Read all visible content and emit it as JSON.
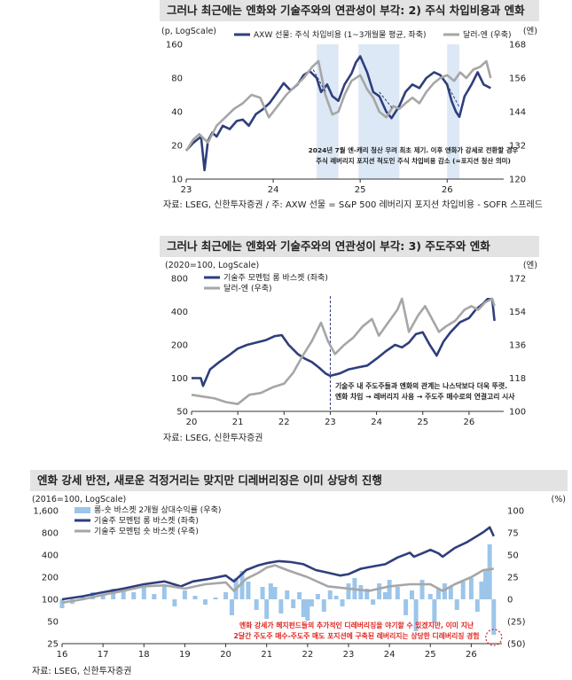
{
  "charts": [
    {
      "title": "그러나 최근에는 엔화와 기술주와의 연관성이 부각: 2) 주식 차입비용과 엔화",
      "source": "자료: LSEG, 신한투자증권 / 주: AXW 선물 = S&P 500 레버리지 포지션 차입비용 - SOFR 스프레드",
      "left_unit": "(p, LogScale)",
      "right_unit": "(엔)",
      "legend": [
        "AXW 선물: 주식 차입비용 (1~3개월물 평균, 좌축)",
        "달러-엔 (우축)"
      ],
      "annotation": [
        "2024년 7월 엔-캐리 청산 우려 최초 제기. 이후 엔화가 강세로 전환할 경우",
        "주식 레버리지 포지션 척도인 주식 차입비용 감소 (=포지션 청산 의미)"
      ]
    },
    {
      "title": "그러나 최근에는 엔화와 기술주와의 연관성이 부각: 3) 주도주와 엔화",
      "source": "자료: LSEG, 신한투자증권",
      "left_unit": "(2020=100, LogScale)",
      "right_unit": "(엔)",
      "legend": [
        "기술주 모멘텀 롱 바스켓 (좌축)",
        "달러-엔 (우축)"
      ],
      "annotation": [
        "기술주 내 주도주들과 엔화의 관계는 나스닥보다 더욱 뚜렷.",
        "엔화 차입 → 레버리지 사용 → 주도주 매수로의 연결고리 시사"
      ]
    },
    {
      "title": "엔화 강세 반전, 새로운 걱정거리는 맞지만 디레버리징은 이미 상당히 진행",
      "source": "자료: LSEG, 신한투자증권",
      "left_unit": "(2016=100, LogScale)",
      "right_unit": "(%)",
      "legend": [
        "롱-숏 바스켓 2개월 상대수익률 (우축)",
        "기술주 모멘텀 롱 바스켓 (좌축)",
        "기술주 모멘텀 숏 바스켓 (우축)"
      ],
      "annotation": [
        "엔화 강세가 헤지펀드들의 추가적인 디레버리징을 야기할 수 있겠지만, 이미 지난",
        "2달간 주도주 매수-주도주 매도 포지션에 구축된 레버리지는 상당한 디레버리징 경험"
      ]
    }
  ],
  "chart_data": [
    {
      "type": "line",
      "y_scale": "log",
      "x_ticks": [
        "23",
        "24",
        "25",
        "26"
      ],
      "x_range": [
        2023.0,
        2026.65
      ],
      "y_left_ticks": [
        10,
        20,
        40,
        80,
        160
      ],
      "y_left_range": [
        10,
        160
      ],
      "y_right_ticks": [
        120,
        132,
        144,
        156,
        168
      ],
      "y_right_range": [
        120,
        168
      ],
      "shaded_periods": [
        [
          2024.5,
          2024.75
        ],
        [
          2024.98,
          2025.45
        ],
        [
          2026.0,
          2026.14
        ]
      ],
      "series": [
        {
          "name": "AXW 선물: 주식 차입비용 (1~3개월물 평균, 좌축)",
          "axis": "left",
          "color": "#2f3e7c",
          "x": [
            2023.0,
            2023.08,
            2023.17,
            2023.21,
            2023.25,
            2023.3,
            2023.35,
            2023.42,
            2023.5,
            2023.58,
            2023.65,
            2023.72,
            2023.8,
            2023.88,
            2023.96,
            2024.05,
            2024.12,
            2024.2,
            2024.28,
            2024.35,
            2024.42,
            2024.5,
            2024.55,
            2024.62,
            2024.68,
            2024.75,
            2024.82,
            2024.9,
            2024.95,
            2025.0,
            2025.08,
            2025.15,
            2025.22,
            2025.3,
            2025.36,
            2025.45,
            2025.52,
            2025.6,
            2025.68,
            2025.76,
            2025.85,
            2025.92,
            2026.0,
            2026.05,
            2026.1,
            2026.14,
            2026.2,
            2026.28,
            2026.35,
            2026.42,
            2026.5
          ],
          "y": [
            18,
            21,
            24,
            12,
            22,
            26,
            24,
            30,
            28,
            33,
            34,
            30,
            38,
            42,
            48,
            60,
            72,
            62,
            70,
            85,
            92,
            80,
            60,
            70,
            55,
            50,
            70,
            88,
            110,
            125,
            90,
            60,
            55,
            40,
            35,
            45,
            60,
            70,
            65,
            80,
            90,
            85,
            70,
            50,
            40,
            36,
            55,
            70,
            90,
            70,
            65
          ]
        },
        {
          "name": "달러-엔 (우축)",
          "axis": "right",
          "color": "#a6a6a6",
          "x": [
            2023.0,
            2023.08,
            2023.15,
            2023.25,
            2023.35,
            2023.45,
            2023.55,
            2023.65,
            2023.75,
            2023.85,
            2023.95,
            2024.05,
            2024.15,
            2024.25,
            2024.35,
            2024.45,
            2024.52,
            2024.6,
            2024.68,
            2024.75,
            2024.82,
            2024.9,
            2025.0,
            2025.08,
            2025.15,
            2025.22,
            2025.3,
            2025.38,
            2025.45,
            2025.52,
            2025.6,
            2025.68,
            2025.76,
            2025.84,
            2025.92,
            2026.0,
            2026.08,
            2026.15,
            2026.22,
            2026.3,
            2026.38,
            2026.45,
            2026.5
          ],
          "y": [
            130,
            134,
            136,
            133,
            139,
            142,
            145,
            147,
            150,
            149,
            142,
            146,
            150,
            153,
            156,
            160,
            162,
            150,
            143,
            144,
            150,
            155,
            157,
            152,
            149,
            144,
            142,
            146,
            145,
            147,
            149,
            147,
            151,
            154,
            156,
            157,
            155,
            158,
            156,
            159,
            160,
            162,
            156
          ]
        }
      ]
    },
    {
      "type": "line",
      "y_scale": "log",
      "x_ticks": [
        "20",
        "21",
        "22",
        "23",
        "24",
        "25",
        "26"
      ],
      "x_range": [
        2020.0,
        2026.75
      ],
      "y_left_ticks": [
        50,
        100,
        200,
        400,
        800
      ],
      "y_left_range": [
        50,
        800
      ],
      "y_right_ticks": [
        100,
        118,
        136,
        154,
        172
      ],
      "y_right_range": [
        100,
        172
      ],
      "marker_x": 2023.0,
      "series": [
        {
          "name": "기술주 모멘텀 롱 바스켓 (좌축)",
          "axis": "left",
          "color": "#2f3e7c",
          "x": [
            2020.0,
            2020.2,
            2020.25,
            2020.4,
            2020.6,
            2020.8,
            2021.0,
            2021.2,
            2021.4,
            2021.6,
            2021.8,
            2021.95,
            2022.1,
            2022.3,
            2022.45,
            2022.6,
            2022.75,
            2022.9,
            2023.0,
            2023.2,
            2023.4,
            2023.6,
            2023.8,
            2024.0,
            2024.2,
            2024.4,
            2024.55,
            2024.7,
            2024.85,
            2025.0,
            2025.15,
            2025.3,
            2025.45,
            2025.6,
            2025.8,
            2026.0,
            2026.15,
            2026.3,
            2026.4,
            2026.5,
            2026.55
          ],
          "y": [
            100,
            100,
            85,
            120,
            140,
            160,
            185,
            200,
            210,
            220,
            240,
            245,
            200,
            165,
            150,
            140,
            125,
            110,
            105,
            110,
            120,
            125,
            130,
            150,
            175,
            200,
            190,
            210,
            250,
            260,
            200,
            160,
            215,
            260,
            320,
            350,
            420,
            470,
            520,
            520,
            330
          ]
        },
        {
          "name": "달러-엔 (우축)",
          "axis": "right",
          "color": "#a6a6a6",
          "x": [
            2020.0,
            2020.25,
            2020.5,
            2020.75,
            2021.0,
            2021.25,
            2021.5,
            2021.75,
            2022.0,
            2022.2,
            2022.4,
            2022.6,
            2022.8,
            2022.95,
            2023.1,
            2023.3,
            2023.5,
            2023.7,
            2023.9,
            2024.05,
            2024.25,
            2024.45,
            2024.55,
            2024.7,
            2024.9,
            2025.05,
            2025.2,
            2025.35,
            2025.5,
            2025.7,
            2025.9,
            2026.05,
            2026.2,
            2026.35,
            2026.5,
            2026.55
          ],
          "y": [
            109,
            108,
            107,
            105,
            104,
            109,
            110,
            113,
            115,
            121,
            130,
            138,
            148,
            138,
            131,
            136,
            140,
            146,
            150,
            141,
            148,
            155,
            161,
            143,
            152,
            157,
            150,
            143,
            146,
            149,
            155,
            157,
            155,
            159,
            161,
            157
          ]
        }
      ]
    },
    {
      "type": "line",
      "y_scale": "log",
      "x_ticks": [
        "16",
        "17",
        "18",
        "19",
        "20",
        "21",
        "22",
        "23",
        "24",
        "25",
        "26"
      ],
      "x_range": [
        2016.0,
        2026.75
      ],
      "y_left_ticks": [
        25,
        50,
        100,
        200,
        400,
        800,
        1600
      ],
      "y_left_range": [
        25,
        1600
      ],
      "y_right_ticks": [
        -50,
        -25,
        0,
        25,
        50,
        75,
        100
      ],
      "y_right_tick_labels": [
        "(50)",
        "(25)",
        "0",
        "25",
        "50",
        "75",
        "100"
      ],
      "y_right_range": [
        -50,
        100
      ],
      "highlight_x": 2026.55,
      "bars": {
        "name": "롱-숏 바스켓 2개월 상대수익률 (우축)",
        "axis": "right",
        "color": "#9cc5ea",
        "x": [
          2016.0,
          2016.25,
          2016.5,
          2016.75,
          2017.0,
          2017.25,
          2017.5,
          2017.75,
          2018.0,
          2018.25,
          2018.5,
          2018.75,
          2019.0,
          2019.25,
          2019.5,
          2019.75,
          2020.0,
          2020.15,
          2020.25,
          2020.4,
          2020.55,
          2020.75,
          2020.9,
          2021.0,
          2021.1,
          2021.2,
          2021.35,
          2021.5,
          2021.65,
          2021.8,
          2021.9,
          2022.0,
          2022.1,
          2022.25,
          2022.4,
          2022.55,
          2022.7,
          2022.85,
          2023.0,
          2023.15,
          2023.3,
          2023.45,
          2023.6,
          2023.75,
          2023.9,
          2024.0,
          2024.2,
          2024.4,
          2024.55,
          2024.65,
          2024.8,
          2025.0,
          2025.1,
          2025.2,
          2025.35,
          2025.5,
          2025.65,
          2025.8,
          2026.0,
          2026.15,
          2026.25,
          2026.35,
          2026.45,
          2026.55
        ],
        "values": [
          -10,
          -5,
          4,
          8,
          6,
          12,
          10,
          8,
          14,
          6,
          16,
          -8,
          10,
          4,
          -6,
          2,
          8,
          -18,
          24,
          32,
          20,
          -12,
          14,
          -22,
          18,
          14,
          -16,
          10,
          -10,
          8,
          -20,
          -24,
          -8,
          6,
          -14,
          10,
          4,
          -8,
          18,
          24,
          16,
          12,
          -6,
          18,
          8,
          22,
          14,
          -18,
          10,
          -36,
          22,
          6,
          -26,
          12,
          18,
          14,
          -12,
          20,
          24,
          -14,
          20,
          34,
          62,
          -40
        ]
      },
      "series": [
        {
          "name": "기술주 모멘텀 롱 바스켓 (좌축)",
          "axis": "left",
          "color": "#2f3e7c",
          "x": [
            2016.0,
            2016.5,
            2017.0,
            2017.5,
            2018.0,
            2018.5,
            2018.9,
            2019.2,
            2019.6,
            2020.0,
            2020.2,
            2020.5,
            2020.8,
            2021.0,
            2021.3,
            2021.6,
            2021.9,
            2022.2,
            2022.5,
            2022.8,
            2023.0,
            2023.3,
            2023.6,
            2023.9,
            2024.2,
            2024.5,
            2024.6,
            2024.8,
            2025.0,
            2025.2,
            2025.3,
            2025.6,
            2025.9,
            2026.1,
            2026.3,
            2026.45,
            2026.55
          ],
          "y": [
            100,
            110,
            125,
            140,
            160,
            175,
            150,
            175,
            190,
            210,
            175,
            250,
            290,
            310,
            330,
            320,
            300,
            250,
            230,
            210,
            220,
            260,
            280,
            300,
            370,
            430,
            380,
            420,
            470,
            420,
            380,
            500,
            600,
            700,
            820,
            950,
            720
          ]
        },
        {
          "name": "기술주 모멘텀 숏 바스켓 (우축)",
          "axis": "left",
          "color": "#a6a6a6",
          "x": [
            2016.0,
            2016.5,
            2017.0,
            2017.5,
            2018.0,
            2018.5,
            2019.0,
            2019.5,
            2020.0,
            2020.2,
            2020.5,
            2020.8,
            2021.0,
            2021.2,
            2021.5,
            2022.0,
            2022.5,
            2023.0,
            2023.5,
            2024.0,
            2024.5,
            2025.0,
            2025.3,
            2025.6,
            2026.0,
            2026.3,
            2026.55
          ],
          "y": [
            90,
            100,
            115,
            130,
            150,
            155,
            140,
            160,
            170,
            130,
            190,
            230,
            270,
            290,
            250,
            200,
            150,
            140,
            130,
            150,
            160,
            160,
            130,
            160,
            200,
            250,
            260
          ]
        }
      ]
    }
  ]
}
